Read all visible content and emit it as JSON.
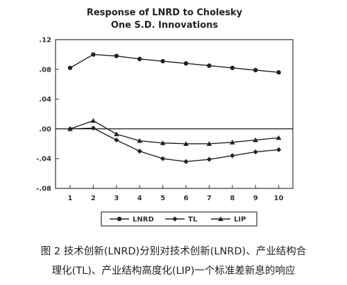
{
  "chart_data": {
    "type": "line",
    "title": [
      "Response of LNRD to Cholesky",
      "One S.D. Innovations"
    ],
    "x": [
      1,
      2,
      3,
      4,
      5,
      6,
      7,
      8,
      9,
      10
    ],
    "ylim": [
      -0.08,
      0.12
    ],
    "yticks": [
      ".12",
      ".08",
      ".04",
      ".00",
      "-.04",
      "-.08"
    ],
    "ytick_values": [
      0.12,
      0.08,
      0.04,
      0.0,
      -0.04,
      -0.08
    ],
    "zero_line": true,
    "grid": false,
    "legend_position": "bottom",
    "series": [
      {
        "name": "LNRD",
        "marker": "circle",
        "values": [
          0.082,
          0.1,
          0.098,
          0.094,
          0.091,
          0.088,
          0.085,
          0.082,
          0.079,
          0.076
        ]
      },
      {
        "name": "TL",
        "marker": "diamond",
        "values": [
          0.0,
          0.001,
          -0.015,
          -0.03,
          -0.04,
          -0.044,
          -0.041,
          -0.036,
          -0.031,
          -0.028
        ]
      },
      {
        "name": "LIP",
        "marker": "triangle",
        "values": [
          0.0,
          0.011,
          -0.007,
          -0.016,
          -0.019,
          -0.02,
          -0.02,
          -0.018,
          -0.015,
          -0.012
        ]
      }
    ]
  },
  "caption": {
    "line1": "图 2   技术创新(LNRD)分别对技术创新(LNRD)、产业结构合",
    "line2": "理化(TL)、产业结构高度化(LIP)一个标准差新息的响应"
  }
}
